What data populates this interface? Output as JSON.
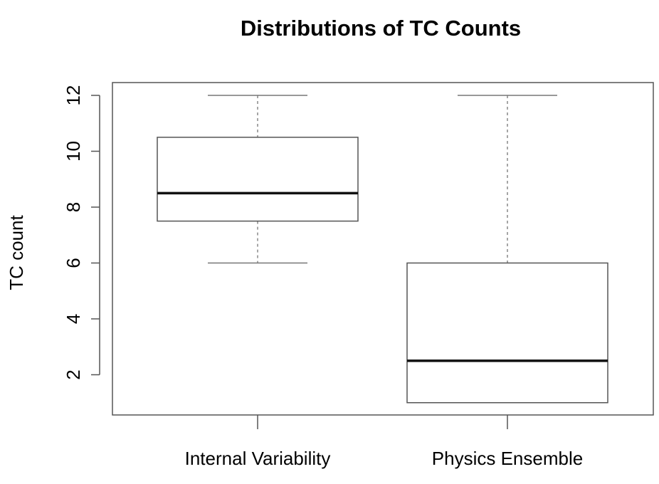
{
  "chart_data": {
    "type": "boxplot",
    "title": "Distributions of TC Counts",
    "xlabel": "",
    "ylabel": "TC count",
    "categories": [
      "Internal Variability",
      "Physics Ensemble"
    ],
    "boxes": [
      {
        "category": "Internal Variability",
        "min": 6,
        "q1": 7.5,
        "median": 8.5,
        "q3": 10.5,
        "max": 12
      },
      {
        "category": "Physics Ensemble",
        "min": 1,
        "q1": 1,
        "median": 2.5,
        "q3": 6,
        "max": 12
      }
    ],
    "y_ticks": [
      2,
      4,
      6,
      8,
      10,
      12
    ],
    "ylim": [
      0.6,
      12.5
    ],
    "grid": false,
    "legend": "none",
    "colors": {
      "box_fill": "#ffffff",
      "box_stroke": "#555555",
      "median": "#111111",
      "whisker": "#777777",
      "axis": "#555555"
    }
  }
}
